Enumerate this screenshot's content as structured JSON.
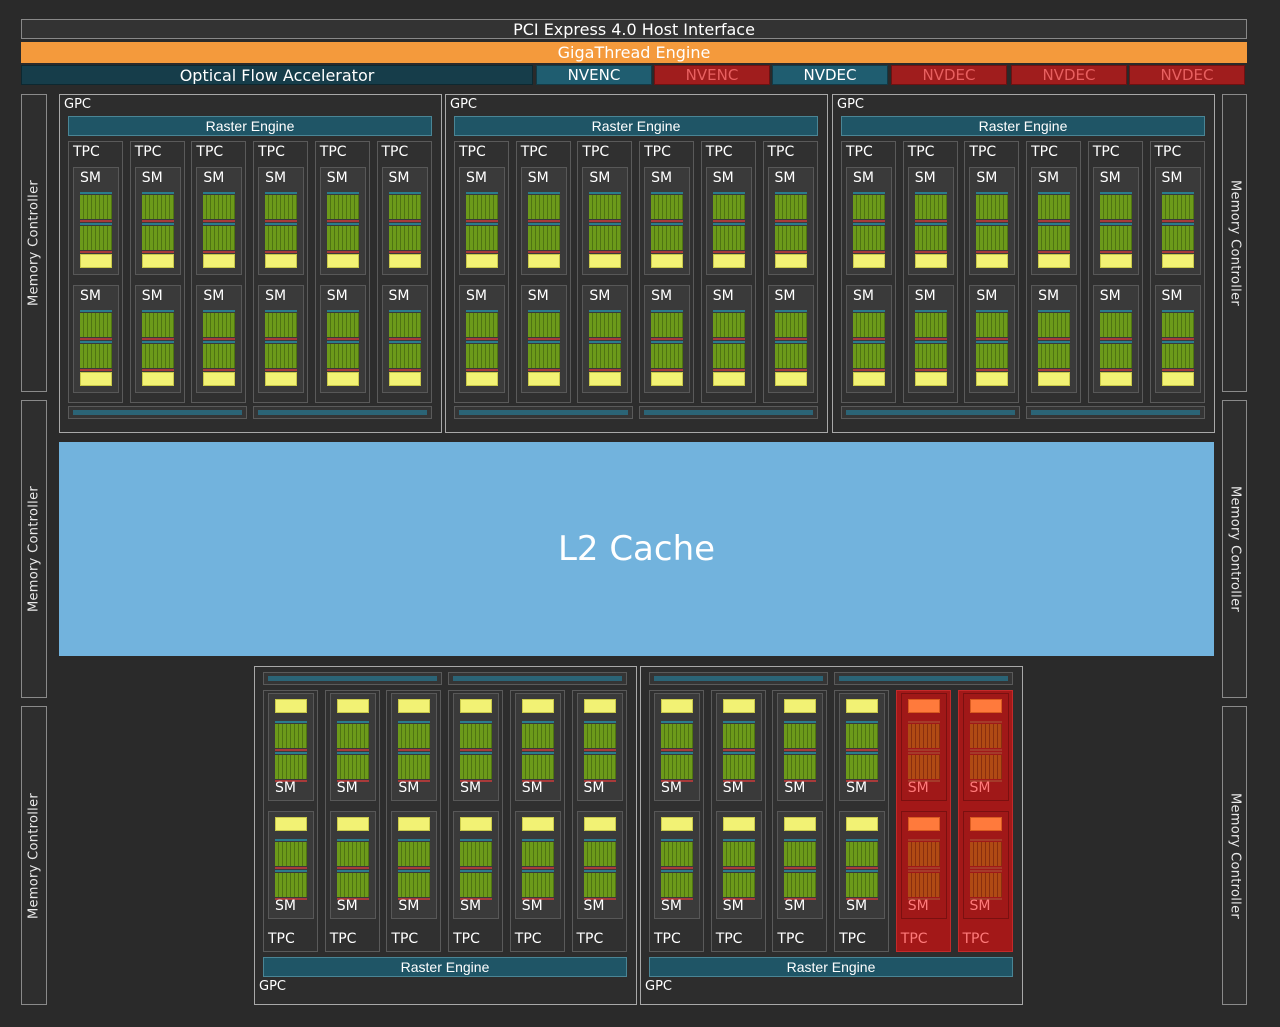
{
  "top": {
    "host_interface": "PCI Express 4.0 Host Interface",
    "gigathread": "GigaThread Engine",
    "optical_flow": "Optical Flow Accelerator",
    "engines": [
      {
        "label": "NVENC",
        "enabled": true
      },
      {
        "label": "NVENC",
        "enabled": false
      },
      {
        "label": "NVDEC",
        "enabled": true
      },
      {
        "label": "NVDEC",
        "enabled": false
      },
      {
        "label": "NVDEC",
        "enabled": false
      },
      {
        "label": "NVDEC",
        "enabled": false
      }
    ]
  },
  "memory_controller_label": "Memory Controller",
  "l2_cache_label": "L2 Cache",
  "labels": {
    "gpc": "GPC",
    "raster_engine": "Raster Engine",
    "tpc": "TPC",
    "sm": "SM"
  },
  "gpcs": [
    {
      "position": "top",
      "tpc_count": 6,
      "disabled_tpcs": []
    },
    {
      "position": "top",
      "tpc_count": 6,
      "disabled_tpcs": []
    },
    {
      "position": "top",
      "tpc_count": 6,
      "disabled_tpcs": []
    },
    {
      "position": "bottom",
      "tpc_count": 6,
      "disabled_tpcs": []
    },
    {
      "position": "bottom",
      "tpc_count": 6,
      "disabled_tpcs": [
        4,
        5
      ]
    }
  ],
  "colors": {
    "background": "#2a2a2a",
    "gigathread": "#f49a3c",
    "l2_cache": "#72b3dd",
    "raster_engine": "#1f5566",
    "cuda_cores": "#6c9a1a",
    "rt_core": "#f2f274",
    "disabled": "#a31818"
  }
}
